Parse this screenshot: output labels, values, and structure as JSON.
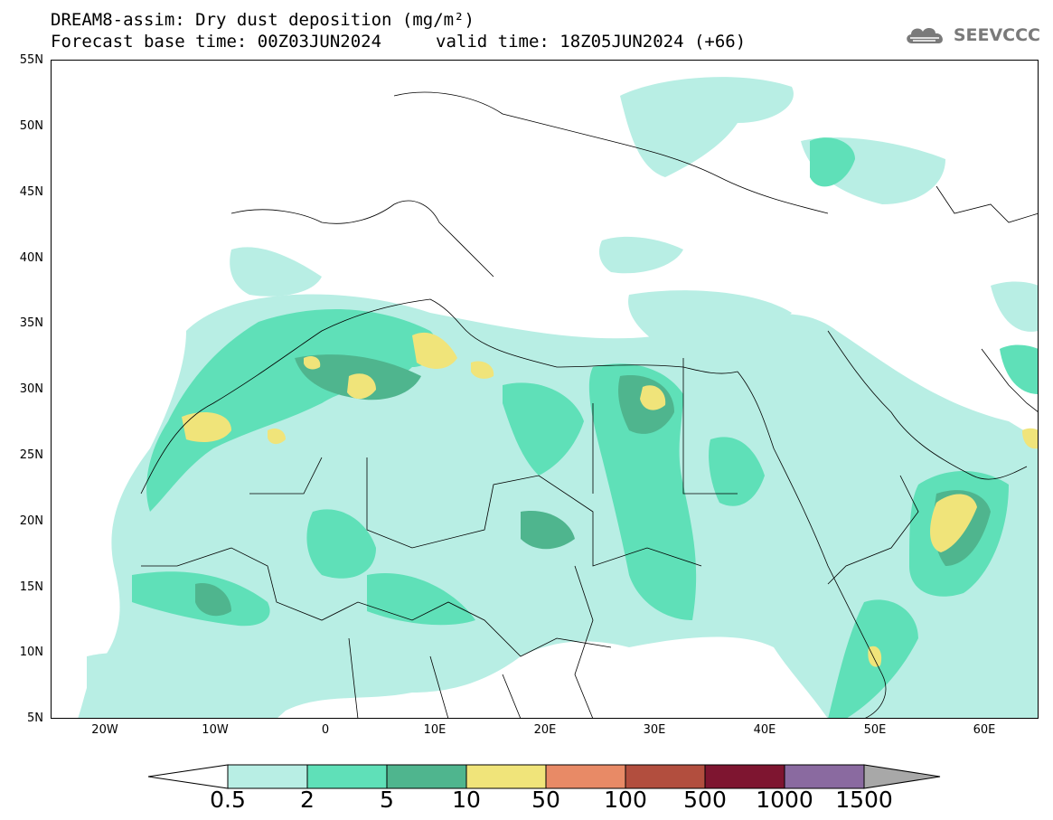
{
  "title": {
    "line1": "DREAM8-assim: Dry dust deposition (mg/m²)",
    "line2_left": "Forecast base time: 00Z03JUN2024",
    "line2_right": "valid time: 18Z05JUN2024 (+66)"
  },
  "logo": {
    "text": "SEEVCCC",
    "icon": "cloud-icon",
    "color": "#7a7a7a"
  },
  "axes": {
    "lat_labels": [
      "55N",
      "50N",
      "45N",
      "40N",
      "35N",
      "30N",
      "25N",
      "20N",
      "15N",
      "10N",
      "5N"
    ],
    "lon_labels": [
      "20W",
      "10W",
      "0",
      "10E",
      "20E",
      "30E",
      "40E",
      "50E",
      "60E"
    ]
  },
  "colorbar": {
    "labels": [
      "0.5",
      "2",
      "5",
      "10",
      "50",
      "100",
      "500",
      "1000",
      "1500"
    ],
    "colors": [
      "#b8eee4",
      "#5fe0b8",
      "#4fb58e",
      "#f0e47a",
      "#e88a66",
      "#b24e3e",
      "#7e1530",
      "#8a6aa0",
      "#a8a8a8"
    ]
  },
  "map_colors": {
    "land": "#ffffff",
    "low": "#b8eee4",
    "mid": "#5fe0b8",
    "high": "#4fb58e",
    "peak": "#f0e47a"
  }
}
